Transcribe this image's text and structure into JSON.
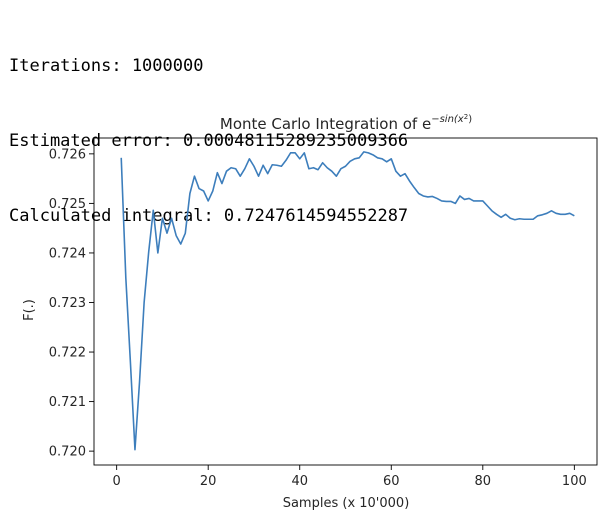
{
  "output_lines": [
    "Iterations: 1000000",
    "Estimated error: 0.00048115289235009366",
    "Calculated integral: 0.7247614594552287"
  ],
  "chart_data": {
    "type": "line",
    "title_main": "Monte Carlo Integration of e",
    "title_sup": "−sin(x",
    "title_sup2": "2",
    "title_sup_close": ")",
    "xlabel": "Samples (x 10'000)",
    "ylabel": "F(.)",
    "xlim": [
      -4.95,
      104.95
    ],
    "ylim": [
      0.71972,
      0.72632
    ],
    "xticks": [
      0,
      20,
      40,
      60,
      80,
      100
    ],
    "yticks": [
      0.72,
      0.721,
      0.722,
      0.723,
      0.724,
      0.725,
      0.726
    ],
    "ytick_labels": [
      "0.720",
      "0.721",
      "0.722",
      "0.723",
      "0.724",
      "0.725",
      "0.726"
    ],
    "grid": false,
    "line_color": "#3d7ebc",
    "series": [
      {
        "x": [
          1,
          2,
          3,
          4,
          5,
          6,
          7,
          8,
          9,
          10,
          11,
          12,
          13,
          14,
          15,
          16,
          17,
          18,
          19,
          20,
          21,
          22,
          23,
          24,
          25,
          26,
          27,
          28,
          29,
          30,
          31,
          32,
          33,
          34,
          35,
          36,
          37,
          38,
          39,
          40,
          41,
          42,
          43,
          44,
          45,
          46,
          47,
          48,
          49,
          50,
          51,
          52,
          53,
          54,
          55,
          56,
          57,
          58,
          59,
          60,
          61,
          62,
          63,
          64,
          65,
          66,
          67,
          68,
          69,
          70,
          71,
          72,
          73,
          74,
          75,
          76,
          77,
          78,
          79,
          80,
          81,
          82,
          83,
          84,
          85,
          86,
          87,
          88,
          89,
          90,
          91,
          92,
          93,
          94,
          95,
          96,
          97,
          98,
          99,
          100
        ],
        "values": [
          0.72592,
          0.7235,
          0.7218,
          0.72003,
          0.7214,
          0.723,
          0.72402,
          0.72486,
          0.724,
          0.7247,
          0.7244,
          0.7247,
          0.72435,
          0.72418,
          0.7244,
          0.7252,
          0.72555,
          0.7253,
          0.72525,
          0.72505,
          0.72525,
          0.72562,
          0.7254,
          0.72565,
          0.72572,
          0.7257,
          0.72555,
          0.7257,
          0.7259,
          0.72575,
          0.72555,
          0.72577,
          0.7256,
          0.72578,
          0.72577,
          0.72575,
          0.72587,
          0.72602,
          0.72602,
          0.7259,
          0.72602,
          0.7257,
          0.72572,
          0.72568,
          0.72582,
          0.72572,
          0.72565,
          0.72555,
          0.7257,
          0.72575,
          0.72585,
          0.7259,
          0.72592,
          0.72604,
          0.72602,
          0.72598,
          0.72592,
          0.7259,
          0.72584,
          0.7259,
          0.72565,
          0.72555,
          0.7256,
          0.72545,
          0.72532,
          0.7252,
          0.72515,
          0.72513,
          0.72514,
          0.7251,
          0.72505,
          0.72504,
          0.72504,
          0.725,
          0.72515,
          0.72508,
          0.7251,
          0.72505,
          0.72505,
          0.72505,
          0.72495,
          0.72485,
          0.72478,
          0.72472,
          0.72478,
          0.7247,
          0.72467,
          0.72469,
          0.72468,
          0.72468,
          0.72468,
          0.72475,
          0.72477,
          0.7248,
          0.72485,
          0.7248,
          0.72478,
          0.72478,
          0.7248,
          0.72475
        ]
      }
    ]
  }
}
